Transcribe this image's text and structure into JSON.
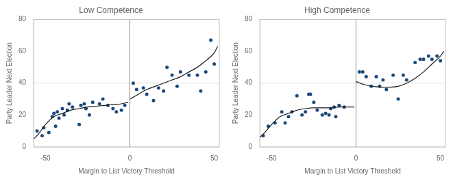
{
  "chart_data": [
    {
      "type": "scatter",
      "title": "Low Competence",
      "xlabel": "Margin to List Victory Threshold",
      "ylabel": "Party Leader Next Election",
      "xlim": [
        -57,
        53
      ],
      "ylim": [
        0,
        80
      ],
      "xticks": [
        -50,
        0,
        50
      ],
      "yticks": [
        0,
        20,
        40,
        60,
        80
      ],
      "grid": false,
      "series": [
        {
          "type": "scatter",
          "color": "#1a4a7a",
          "x": [
            -55,
            -52,
            -51,
            -48,
            -46,
            -45,
            -44,
            -43,
            -42,
            -40,
            -39,
            -37,
            -36,
            -34,
            -30,
            -29,
            -27,
            -26,
            -24,
            -22,
            -18,
            -16,
            -13,
            -10,
            -8,
            -5,
            -3,
            2,
            4,
            8,
            10,
            14,
            17,
            20,
            22,
            25,
            28,
            30,
            35,
            40,
            42,
            45,
            48,
            50
          ],
          "values": [
            10,
            7,
            12,
            9,
            19,
            21,
            13,
            22,
            18,
            24,
            20,
            23,
            27,
            25,
            14,
            26,
            27,
            24,
            20,
            28,
            27,
            30,
            26,
            24,
            22,
            23,
            26,
            40,
            36,
            37,
            33,
            29,
            37,
            35,
            50,
            45,
            38,
            47,
            45,
            45,
            35,
            47,
            67,
            52
          ]
        },
        {
          "type": "line",
          "color": "#1a1a1a",
          "x": [
            -57,
            -55,
            -50,
            -45,
            -40,
            -35,
            -30,
            -25,
            -20,
            -15,
            -10,
            -5,
            -1
          ],
          "values": [
            5,
            7,
            14,
            19,
            21,
            23,
            24,
            25,
            25.5,
            26,
            26.5,
            27,
            28
          ]
        },
        {
          "type": "line",
          "color": "#1a1a1a",
          "x": [
            0,
            5,
            10,
            15,
            20,
            25,
            30,
            35,
            40,
            45,
            50,
            52
          ],
          "values": [
            30,
            33,
            36,
            38,
            40,
            42,
            44,
            47,
            50,
            54,
            59,
            63
          ]
        }
      ],
      "vlines": [
        {
          "x": 0,
          "color": "#888888"
        }
      ],
      "hlines": [
        {
          "y": 40,
          "color": "#dddddd"
        }
      ]
    },
    {
      "type": "scatter",
      "title": "High Competence",
      "xlabel": "Margin to List Victory Threshold",
      "ylabel": "Party Leader Next Election",
      "xlim": [
        -57,
        53
      ],
      "ylim": [
        0,
        80
      ],
      "xticks": [
        -50,
        0,
        50
      ],
      "yticks": [
        0,
        20,
        40,
        60,
        80
      ],
      "grid": false,
      "series": [
        {
          "type": "scatter",
          "color": "#1a4a7a",
          "x": [
            -55,
            -52,
            -48,
            -44,
            -42,
            -40,
            -38,
            -35,
            -32,
            -30,
            -28,
            -27,
            -25,
            -23,
            -20,
            -18,
            -16,
            -15,
            -13,
            -12,
            -10,
            -7,
            2,
            4,
            6,
            9,
            12,
            14,
            16,
            18,
            22,
            25,
            28,
            30,
            35,
            38,
            40,
            43,
            45,
            48,
            50
          ],
          "values": [
            7,
            13,
            15,
            22,
            15,
            19,
            22,
            32,
            20,
            22,
            33,
            33,
            28,
            23,
            20,
            21,
            20,
            24,
            25,
            19,
            26,
            25,
            47,
            47,
            44,
            38,
            44,
            38,
            42,
            36,
            45,
            30,
            45,
            42,
            53,
            55,
            55,
            57,
            55,
            57,
            54
          ]
        },
        {
          "type": "line",
          "color": "#1a1a1a",
          "x": [
            -57,
            -55,
            -50,
            -45,
            -40,
            -35,
            -30,
            -25,
            -20,
            -15,
            -10,
            -5,
            -1
          ],
          "values": [
            6,
            8,
            14,
            19,
            21,
            23,
            24,
            24.5,
            24.5,
            24.5,
            25,
            25,
            25
          ]
        },
        {
          "type": "line",
          "color": "#1a1a1a",
          "x": [
            0,
            5,
            10,
            15,
            20,
            25,
            30,
            35,
            40,
            45,
            50,
            52
          ],
          "values": [
            41,
            39,
            38,
            37.5,
            37.5,
            38,
            40,
            43,
            47,
            52,
            57,
            60
          ]
        }
      ],
      "vlines": [
        {
          "x": 0,
          "color": "#888888"
        }
      ],
      "hlines": [
        {
          "y": 40,
          "color": "#dddddd"
        }
      ]
    }
  ]
}
